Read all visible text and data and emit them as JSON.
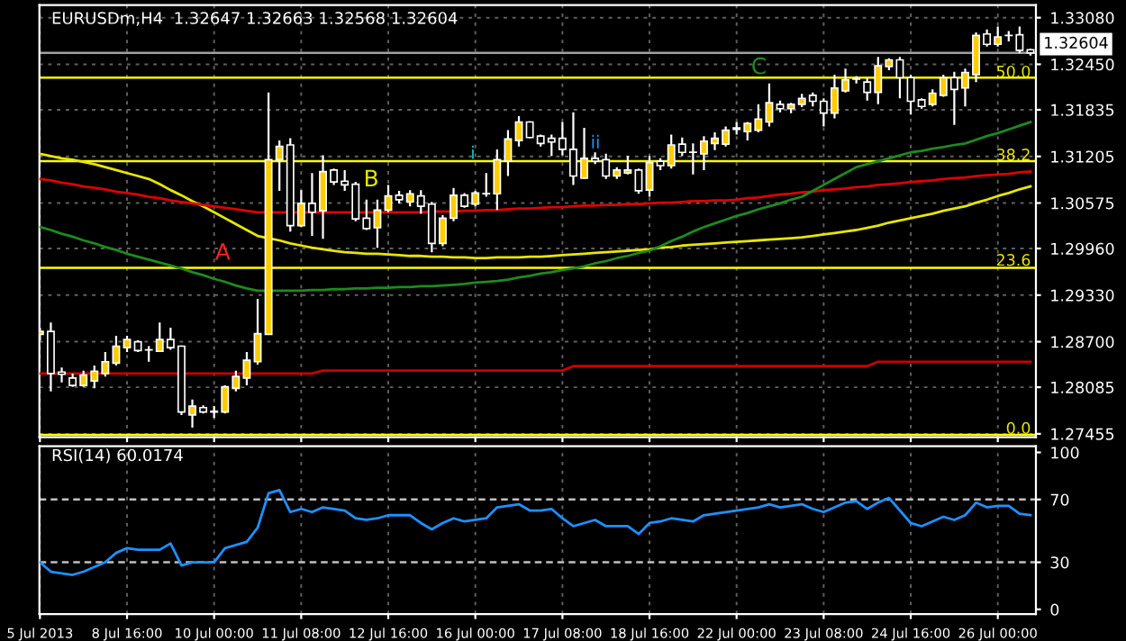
{
  "chart_data": [
    {
      "type": "candlestick",
      "title": "EURUSDm,H4  1.32647 1.32663 1.32568 1.32604",
      "categories": [
        null,
        null,
        null,
        null,
        null,
        null,
        null,
        null,
        null,
        null,
        null,
        null,
        null,
        null,
        null,
        null,
        null,
        null,
        null,
        null,
        null,
        null,
        null,
        null,
        null,
        null,
        null,
        null,
        null,
        null,
        null,
        null,
        null,
        null,
        null,
        null,
        null,
        null,
        null,
        null,
        null,
        null,
        null,
        null,
        null,
        null,
        null,
        null,
        null,
        null,
        null,
        null,
        null,
        null,
        null,
        null,
        null,
        null,
        null,
        null,
        null,
        null,
        null,
        null,
        null,
        null,
        null,
        null,
        null,
        null,
        null,
        null,
        null,
        null,
        null,
        null,
        null,
        null,
        null,
        null,
        null,
        null,
        null,
        null,
        null,
        null,
        null,
        null,
        null,
        null,
        null,
        null
      ],
      "ohlc": [
        [
          1.288,
          1.2889,
          1.2872,
          1.2884
        ],
        [
          1.2884,
          1.2896,
          1.2803,
          1.2827
        ],
        [
          1.2829,
          1.2835,
          1.2815,
          1.2826
        ],
        [
          1.2821,
          1.2827,
          1.2809,
          1.2811
        ],
        [
          1.2811,
          1.2831,
          1.2809,
          1.2825
        ],
        [
          1.2817,
          1.2838,
          1.2807,
          1.283
        ],
        [
          1.2827,
          1.2856,
          1.2823,
          1.2843
        ],
        [
          1.2841,
          1.2878,
          1.2838,
          1.2864
        ],
        [
          1.2862,
          1.2878,
          1.2856,
          1.2873
        ],
        [
          1.287,
          1.2872,
          1.2856,
          1.2858
        ],
        [
          1.2859,
          1.2864,
          1.2843,
          1.2859
        ],
        [
          1.2857,
          1.2896,
          1.2856,
          1.2873
        ],
        [
          1.2873,
          1.2889,
          1.2859,
          1.2862
        ],
        [
          1.2864,
          1.2865,
          1.2771,
          1.2775
        ],
        [
          1.2771,
          1.2792,
          1.2754,
          1.2783
        ],
        [
          1.2781,
          1.2784,
          1.2773,
          1.2775
        ],
        [
          1.2776,
          1.2783,
          1.2767,
          1.2775
        ],
        [
          1.2775,
          1.2811,
          1.2773,
          1.2809
        ],
        [
          1.2807,
          1.2831,
          1.2803,
          1.2823
        ],
        [
          1.2821,
          1.2856,
          1.2811,
          1.2845
        ],
        [
          1.2843,
          1.2928,
          1.2839,
          1.2881
        ],
        [
          1.288,
          1.3207,
          1.288,
          1.3116
        ],
        [
          1.3116,
          1.3142,
          1.3074,
          1.3134
        ],
        [
          1.3136,
          1.3145,
          1.3019,
          1.3027
        ],
        [
          1.3027,
          1.3075,
          1.3025,
          1.3057
        ],
        [
          1.3057,
          1.3098,
          1.3013,
          1.3045
        ],
        [
          1.3047,
          1.3122,
          1.3009,
          1.31
        ],
        [
          1.3102,
          1.3104,
          1.3082,
          1.3086
        ],
        [
          1.3087,
          1.3102,
          1.3074,
          1.3082
        ],
        [
          1.3083,
          1.3086,
          1.3033,
          1.3036
        ],
        [
          1.3037,
          1.3062,
          1.3021,
          1.3023
        ],
        [
          1.3024,
          1.3062,
          1.2997,
          1.3048
        ],
        [
          1.3048,
          1.3082,
          1.3045,
          1.3067
        ],
        [
          1.3068,
          1.3074,
          1.3057,
          1.3062
        ],
        [
          1.3059,
          1.3075,
          1.3053,
          1.307
        ],
        [
          1.3067,
          1.3075,
          1.3043,
          1.3053
        ],
        [
          1.3056,
          1.3059,
          1.2991,
          1.3003
        ],
        [
          1.3003,
          1.3041,
          1.2999,
          1.3037
        ],
        [
          1.3037,
          1.3078,
          1.3033,
          1.3068
        ],
        [
          1.3068,
          1.3071,
          1.3051,
          1.3053
        ],
        [
          1.3056,
          1.3074,
          1.3053,
          1.3071
        ],
        [
          1.307,
          1.3098,
          1.3066,
          1.307
        ],
        [
          1.307,
          1.313,
          1.3048,
          1.3116
        ],
        [
          1.3114,
          1.3156,
          1.3094,
          1.3144
        ],
        [
          1.3142,
          1.3175,
          1.3134,
          1.3167
        ],
        [
          1.3167,
          1.3168,
          1.3145,
          1.3146
        ],
        [
          1.3148,
          1.315,
          1.3134,
          1.3138
        ],
        [
          1.3145,
          1.315,
          1.3121,
          1.314
        ],
        [
          1.3145,
          1.3167,
          1.3122,
          1.313
        ],
        [
          1.313,
          1.318,
          1.3082,
          1.3094
        ],
        [
          1.3091,
          1.3159,
          1.309,
          1.3118
        ],
        [
          1.3118,
          1.3126,
          1.311,
          1.3114
        ],
        [
          1.3116,
          1.3124,
          1.309,
          1.3094
        ],
        [
          1.3094,
          1.3106,
          1.309,
          1.3102
        ],
        [
          1.3098,
          1.3121,
          1.3096,
          1.3102
        ],
        [
          1.3102,
          1.3104,
          1.307,
          1.3074
        ],
        [
          1.3075,
          1.3121,
          1.3066,
          1.3112
        ],
        [
          1.3114,
          1.3118,
          1.3102,
          1.3108
        ],
        [
          1.3108,
          1.315,
          1.3104,
          1.3136
        ],
        [
          1.3137,
          1.3146,
          1.3121,
          1.3126
        ],
        [
          1.3126,
          1.3138,
          1.3096,
          1.3126
        ],
        [
          1.3124,
          1.3148,
          1.3102,
          1.3141
        ],
        [
          1.3138,
          1.3153,
          1.3129,
          1.3145
        ],
        [
          1.3137,
          1.3161,
          1.3134,
          1.3156
        ],
        [
          1.3157,
          1.3167,
          1.315,
          1.3159
        ],
        [
          1.3154,
          1.3167,
          1.3142,
          1.3165
        ],
        [
          1.3156,
          1.3191,
          1.3153,
          1.3171
        ],
        [
          1.3167,
          1.3219,
          1.3161,
          1.3193
        ],
        [
          1.3191,
          1.3196,
          1.318,
          1.3185
        ],
        [
          1.3185,
          1.3193,
          1.3179,
          1.3191
        ],
        [
          1.3191,
          1.3205,
          1.3187,
          1.3199
        ],
        [
          1.3203,
          1.3207,
          1.3188,
          1.3195
        ],
        [
          1.3195,
          1.3199,
          1.3161,
          1.3179
        ],
        [
          1.3179,
          1.3231,
          1.3172,
          1.3213
        ],
        [
          1.3209,
          1.3239,
          1.3207,
          1.3224
        ],
        [
          1.3225,
          1.3229,
          1.3219,
          1.3225
        ],
        [
          1.3221,
          1.3226,
          1.3196,
          1.3207
        ],
        [
          1.3207,
          1.3255,
          1.3191,
          1.3243
        ],
        [
          1.3242,
          1.3253,
          1.3237,
          1.3251
        ],
        [
          1.3251,
          1.3255,
          1.3199,
          1.3227
        ],
        [
          1.3227,
          1.3231,
          1.3177,
          1.3195
        ],
        [
          1.3197,
          1.3199,
          1.3185,
          1.3188
        ],
        [
          1.3191,
          1.3211,
          1.3188,
          1.3206
        ],
        [
          1.3203,
          1.3231,
          1.3201,
          1.3227
        ],
        [
          1.3227,
          1.3235,
          1.3163,
          1.3211
        ],
        [
          1.3213,
          1.3239,
          1.3188,
          1.3234
        ],
        [
          1.3231,
          1.3288,
          1.3221,
          1.3284
        ],
        [
          1.3286,
          1.3292,
          1.3269,
          1.3272
        ],
        [
          1.3272,
          1.3296,
          1.3269,
          1.3282
        ],
        [
          1.3284,
          1.329,
          1.3276,
          1.3284
        ],
        [
          1.3285,
          1.3296,
          1.326,
          1.3264
        ],
        [
          1.32647,
          1.32663,
          1.32568,
          1.32604
        ]
      ],
      "colors": [
        "#ffcc00",
        "#000000",
        "#000000",
        "#000000",
        "#ffcc00",
        "#ffcc00",
        "#ffcc00",
        "#ffcc00",
        "#ffcc00",
        "#000000",
        "#ffffff",
        "#ffcc00",
        "#000000",
        "#000000",
        "#ffcc00",
        "#000000",
        "#000000",
        "#ffcc00",
        "#ffcc00",
        "#ffcc00",
        "#ffcc00",
        "#ffcc00",
        "#ffcc00",
        "#000000",
        "#ffcc00",
        "#000000",
        "#ffcc00",
        "#000000",
        "#000000",
        "#000000",
        "#000000",
        "#ffcc00",
        "#ffcc00",
        "#000000",
        "#ffcc00",
        "#000000",
        "#000000",
        "#ffcc00",
        "#ffcc00",
        "#000000",
        "#ffcc00",
        "#ffffff",
        "#ffcc00",
        "#ffcc00",
        "#ffcc00",
        "#000000",
        "#000000",
        "#000000",
        "#000000",
        "#000000",
        "#ffcc00",
        "#000000",
        "#000000",
        "#ffcc00",
        "#ffcc00",
        "#000000",
        "#ffcc00",
        "#000000",
        "#ffcc00",
        "#000000",
        "#ffffff",
        "#ffcc00",
        "#ffcc00",
        "#ffcc00",
        "#ffcc00",
        "#ffcc00",
        "#ffcc00",
        "#ffcc00",
        "#000000",
        "#ffcc00",
        "#ffcc00",
        "#000000",
        "#000000",
        "#ffcc00",
        "#ffcc00",
        "#ffffff",
        "#000000",
        "#ffcc00",
        "#ffcc00",
        "#000000",
        "#000000",
        "#000000",
        "#ffcc00",
        "#ffcc00",
        "#000000",
        "#ffcc00",
        "#ffcc00",
        "#000000",
        "#ffcc00",
        "#ffffff",
        "#000000",
        "#000000"
      ],
      "series": [
        {
          "type": "line",
          "color": "#e6e600",
          "values": [
            1.3124,
            1.3121,
            1.3118,
            1.3116,
            1.3113,
            1.311,
            1.3106,
            1.3102,
            1.3098,
            1.3094,
            1.309,
            1.3083,
            1.3075,
            1.3068,
            1.306,
            1.3053,
            1.3045,
            1.3037,
            1.3029,
            1.3021,
            1.3013,
            1.301,
            1.3007,
            1.3003,
            1.3,
            1.2997,
            1.2995,
            1.2993,
            1.2991,
            1.299,
            1.2989,
            1.2989,
            1.2988,
            1.2987,
            1.2986,
            1.2986,
            1.2985,
            1.2985,
            1.2984,
            1.2984,
            1.2983,
            1.2983,
            1.2984,
            1.2984,
            1.2984,
            1.2985,
            1.2985,
            1.2986,
            1.2987,
            1.2988,
            1.2989,
            1.299,
            1.2991,
            1.2992,
            1.2993,
            1.2994,
            1.2995,
            1.2997,
            1.2998,
            1.3,
            1.3001,
            1.3002,
            1.3003,
            1.3004,
            1.3005,
            1.3006,
            1.3007,
            1.3008,
            1.3009,
            1.301,
            1.3011,
            1.3013,
            1.3015,
            1.3017,
            1.3019,
            1.3021,
            1.3024,
            1.3027,
            1.3031,
            1.3034,
            1.3037,
            1.304,
            1.3043,
            1.3047,
            1.305,
            1.3053,
            1.3058,
            1.3062,
            1.3067,
            1.3071,
            1.3076,
            1.308
          ]
        },
        {
          "type": "line",
          "color": "#e00000",
          "values": [
            1.309,
            1.3088,
            1.3085,
            1.3083,
            1.308,
            1.3078,
            1.3076,
            1.3073,
            1.3071,
            1.3069,
            1.3066,
            1.3064,
            1.3061,
            1.3059,
            1.3057,
            1.3055,
            1.3053,
            1.3051,
            1.3049,
            1.3047,
            1.3045,
            1.3045,
            1.3045,
            1.3045,
            1.3045,
            1.3045,
            1.3045,
            1.3045,
            1.3045,
            1.3045,
            1.3045,
            1.3045,
            1.3045,
            1.3045,
            1.3045,
            1.3045,
            1.3046,
            1.3046,
            1.3046,
            1.3047,
            1.3047,
            1.3048,
            1.3048,
            1.3049,
            1.305,
            1.305,
            1.3051,
            1.3052,
            1.3052,
            1.3053,
            1.3054,
            1.3054,
            1.3055,
            1.3055,
            1.3056,
            1.3056,
            1.3057,
            1.3058,
            1.3058,
            1.3059,
            1.306,
            1.306,
            1.3061,
            1.3061,
            1.3062,
            1.3064,
            1.3065,
            1.3067,
            1.3069,
            1.307,
            1.3072,
            1.3073,
            1.3075,
            1.3076,
            1.3077,
            1.3079,
            1.308,
            1.3082,
            1.3083,
            1.3084,
            1.3086,
            1.3087,
            1.3088,
            1.309,
            1.3091,
            1.3092,
            1.3094,
            1.3095,
            1.3096,
            1.3097,
            1.3099,
            1.31
          ]
        },
        {
          "type": "line",
          "color": "#1e8a1e",
          "values": [
            1.3025,
            1.3021,
            1.3016,
            1.3012,
            1.3007,
            1.3003,
            1.2998,
            1.2994,
            1.2989,
            1.2985,
            1.2981,
            1.2977,
            1.2973,
            1.2969,
            1.2964,
            1.296,
            1.2955,
            1.2951,
            1.2946,
            1.2942,
            1.2939,
            1.2939,
            1.2939,
            1.2939,
            1.2939,
            1.294,
            1.294,
            1.2941,
            1.2941,
            1.2942,
            1.2942,
            1.2943,
            1.2943,
            1.2944,
            1.2944,
            1.2945,
            1.2945,
            1.2946,
            1.2947,
            1.2948,
            1.295,
            1.2951,
            1.2952,
            1.2954,
            1.2957,
            1.2959,
            1.2962,
            1.2964,
            1.2967,
            1.2969,
            1.2972,
            1.2976,
            1.2979,
            1.2983,
            1.2986,
            1.299,
            1.2993,
            1.2999,
            1.3006,
            1.3012,
            1.3019,
            1.3025,
            1.303,
            1.3035,
            1.304,
            1.3044,
            1.3049,
            1.3053,
            1.3057,
            1.3062,
            1.3066,
            1.3074,
            1.3082,
            1.309,
            1.3098,
            1.3106,
            1.311,
            1.3114,
            1.3118,
            1.3122,
            1.3126,
            1.3128,
            1.3131,
            1.3133,
            1.3136,
            1.3138,
            1.3143,
            1.3148,
            1.3152,
            1.3157,
            1.3162,
            1.3167
          ]
        },
        {
          "type": "line",
          "color": "#cc0000",
          "values": [
            1.2827,
            1.2827,
            1.2827,
            1.2827,
            1.2827,
            1.2827,
            1.2827,
            1.2827,
            1.2827,
            1.2827,
            1.2827,
            1.2827,
            1.2827,
            1.2827,
            1.2827,
            1.2827,
            1.2827,
            1.2827,
            1.2827,
            1.2827,
            1.2827,
            1.2827,
            1.2827,
            1.2827,
            1.2827,
            1.2827,
            1.2831,
            1.2831,
            1.2831,
            1.2831,
            1.2831,
            1.2831,
            1.2831,
            1.2831,
            1.2831,
            1.2831,
            1.2831,
            1.2831,
            1.2831,
            1.2831,
            1.2831,
            1.2831,
            1.2831,
            1.2831,
            1.2831,
            1.2831,
            1.2831,
            1.2831,
            1.2831,
            1.2837,
            1.2837,
            1.2837,
            1.2837,
            1.2837,
            1.2837,
            1.2837,
            1.2837,
            1.2837,
            1.2837,
            1.2837,
            1.2837,
            1.2837,
            1.2837,
            1.2837,
            1.2837,
            1.2837,
            1.2837,
            1.2837,
            1.2837,
            1.2837,
            1.2837,
            1.2837,
            1.2837,
            1.2837,
            1.2837,
            1.2837,
            1.2837,
            1.2843,
            1.2843,
            1.2843,
            1.2843,
            1.2843,
            1.2843,
            1.2843,
            1.2843,
            1.2843,
            1.2843,
            1.2843,
            1.2843,
            1.2843,
            1.2843,
            1.2843
          ]
        }
      ],
      "ref_lines": [
        {
          "axis": "y",
          "value": 1.3227,
          "color": "#ffff00",
          "line_style": "solid"
        },
        {
          "axis": "y",
          "value": 1.3114,
          "color": "#ffff00",
          "line_style": "solid"
        },
        {
          "axis": "y",
          "value": 1.297,
          "color": "#ffff00",
          "line_style": "solid"
        },
        {
          "axis": "y",
          "value": 1.2744,
          "color": "#ffff00",
          "line_style": "solid"
        },
        {
          "axis": "y",
          "value": 1.32604,
          "label": "1.32604",
          "color": "#a0a0a0",
          "line_style": "solid"
        }
      ],
      "annotations": [
        "A",
        "B",
        "C",
        "i",
        "ii",
        "50.0",
        "38.2",
        "23.6",
        "0.0"
      ],
      "ylim": [
        1.2741,
        1.3325
      ],
      "yticks": [
        {
          "value": 1.3308,
          "label": "1.33080"
        },
        {
          "value": 1.3245,
          "label": "1.32450"
        },
        {
          "value": 1.31835,
          "label": "1.31835"
        },
        {
          "value": 1.31205,
          "label": "1.31205"
        },
        {
          "value": 1.30575,
          "label": "1.30575"
        },
        {
          "value": 1.2996,
          "label": "1.29960"
        },
        {
          "value": 1.2933,
          "label": "1.29330"
        },
        {
          "value": 1.287,
          "label": "1.28700"
        },
        {
          "value": 1.28085,
          "label": "1.28085"
        },
        {
          "value": 1.27455,
          "label": "1.27455"
        }
      ],
      "tick_labels": "y",
      "grid": true
    },
    {
      "type": "line",
      "title": "RSI(14) 60.0174",
      "categories": [
        "5 Jul 2013",
        null,
        null,
        null,
        null,
        null,
        null,
        null,
        "8 Jul 16:00",
        null,
        null,
        null,
        null,
        null,
        null,
        null,
        "10 Jul 00:00",
        null,
        null,
        null,
        null,
        null,
        null,
        null,
        "11 Jul 08:00",
        null,
        null,
        null,
        null,
        null,
        null,
        null,
        "12 Jul 16:00",
        null,
        null,
        null,
        null,
        null,
        null,
        null,
        "16 Jul 00:00",
        null,
        null,
        null,
        null,
        null,
        null,
        null,
        "17 Jul 08:00",
        null,
        null,
        null,
        null,
        null,
        null,
        null,
        "18 Jul 16:00",
        null,
        null,
        null,
        null,
        null,
        null,
        null,
        "22 Jul 00:00",
        null,
        null,
        null,
        null,
        null,
        null,
        null,
        "23 Jul 08:00",
        null,
        null,
        null,
        null,
        null,
        null,
        null,
        "24 Jul 16:00",
        null,
        null,
        null,
        null,
        null,
        null,
        null,
        "26 Jul 00:00",
        null,
        null,
        null
      ],
      "series": [
        {
          "color": "#1e90ff",
          "values": [
            30,
            24,
            23,
            22,
            24,
            27,
            30,
            36,
            39,
            38,
            38,
            38,
            42,
            28,
            30,
            30,
            30,
            39,
            41,
            43,
            52,
            74,
            76,
            62,
            64,
            62,
            65,
            64,
            63,
            58,
            57,
            58,
            60,
            60,
            60,
            55,
            51,
            55,
            58,
            56,
            57,
            58,
            65,
            66,
            67,
            63,
            63,
            64,
            58,
            53,
            55,
            57,
            53,
            53,
            53,
            48,
            55,
            56,
            58,
            57,
            56,
            60,
            61,
            62,
            63,
            64,
            65,
            67,
            65,
            66,
            67,
            64,
            62,
            65,
            68,
            69,
            64,
            68,
            71,
            63,
            55,
            53,
            56,
            59,
            57,
            60,
            68,
            65,
            66,
            66,
            61,
            60
          ]
        }
      ],
      "ref_lines": [
        {
          "axis": "y",
          "value": 70,
          "color": "#c0c0c0",
          "line_style": "dashed"
        },
        {
          "axis": "y",
          "value": 30,
          "color": "#c0c0c0",
          "line_style": "dashed"
        }
      ],
      "ylim": [
        -3,
        104
      ],
      "yticks": [
        100,
        70,
        30,
        0
      ],
      "grid": "x"
    }
  ]
}
